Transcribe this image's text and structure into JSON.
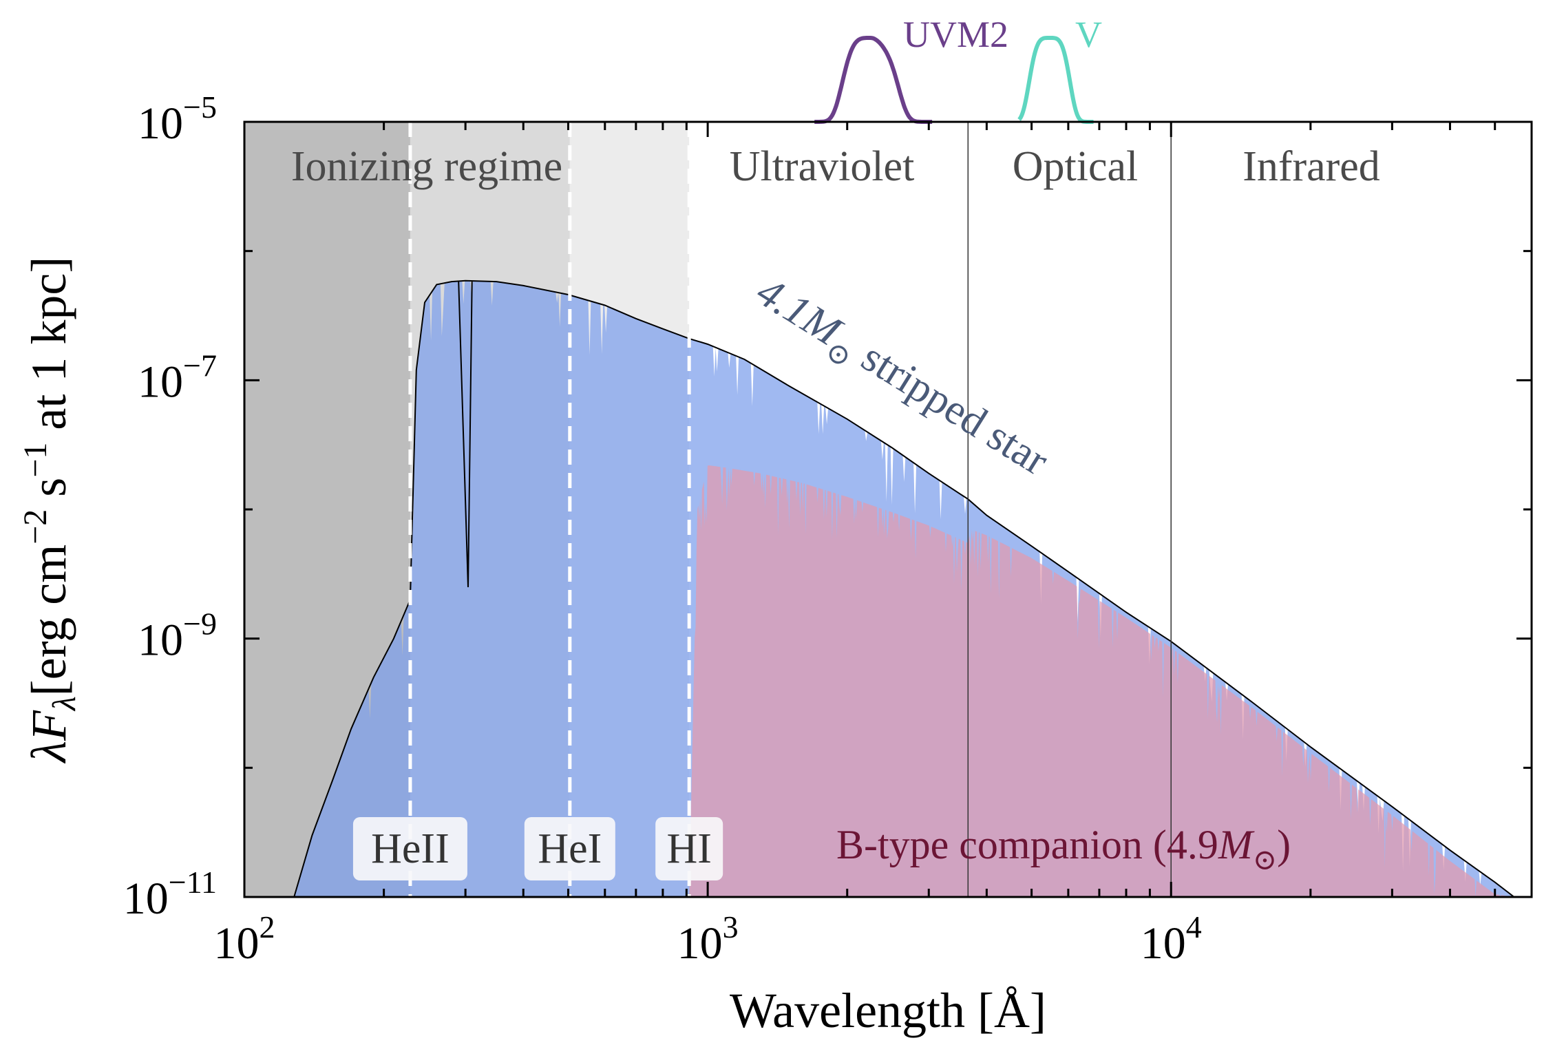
{
  "chart_data": {
    "type": "area",
    "xscale": "log",
    "yscale": "log",
    "xlim": [
      100,
      60000
    ],
    "ylim": [
      1e-11,
      1e-05
    ],
    "xlabel": "Wavelength [Å]",
    "ylabel_parts": {
      "main": "λF",
      "sub": "λ",
      "units": "[erg cm",
      "e1": "−2",
      "s": " s",
      "e2": "−1",
      "tail": " at 1 kpc]"
    },
    "x_ticks": [
      {
        "value": 100,
        "base": "10",
        "exp": "2"
      },
      {
        "value": 1000,
        "base": "10",
        "exp": "3"
      },
      {
        "value": 10000,
        "base": "10",
        "exp": "4"
      }
    ],
    "y_ticks": [
      {
        "value": 1e-05,
        "base": "10",
        "exp": "−5"
      },
      {
        "value": 1e-07,
        "base": "10",
        "exp": "−7"
      },
      {
        "value": 1e-09,
        "base": "10",
        "exp": "−9"
      },
      {
        "value": 1e-11,
        "base": "10",
        "exp": "−11"
      }
    ],
    "regions": [
      {
        "label": "Ionizing regime",
        "x_range": [
          100,
          912
        ],
        "color": "#cccccc"
      },
      {
        "label": "Ultraviolet",
        "x_range": [
          912,
          3646
        ]
      },
      {
        "label": "Optical",
        "x_range": [
          3646,
          10000
        ]
      },
      {
        "label": "Infrared",
        "x_range": [
          10000,
          60000
        ]
      }
    ],
    "ionization_edges": [
      {
        "label": "HeII",
        "wavelength": 228,
        "shade": "#bdbdbd"
      },
      {
        "label": "HeI",
        "wavelength": 504,
        "shade": "#dadada"
      },
      {
        "label": "HI",
        "wavelength": 912,
        "shade": "#ececec"
      }
    ],
    "series": [
      {
        "name": "4.1M⊙ stripped star",
        "label_text": "4.1M",
        "label_tail": " stripped star",
        "color": "#4a6fd6",
        "fill": "#7b9eec",
        "line_color": "#000000",
        "x": [
          128,
          140,
          155,
          170,
          190,
          210,
          228,
          235,
          245,
          260,
          280,
          300,
          350,
          400,
          500,
          600,
          700,
          800,
          912,
          1000,
          1200,
          1500,
          2000,
          2500,
          3000,
          3646,
          4000,
          5000,
          6000,
          8000,
          10000,
          15000,
          20000,
          30000,
          40000,
          50000,
          55000
        ],
        "y": [
          1e-11,
          3e-11,
          8e-11,
          2e-10,
          5e-10,
          1e-09,
          2e-09,
          1.2e-07,
          4e-07,
          5.5e-07,
          5.8e-07,
          5.9e-07,
          5.8e-07,
          5.4e-07,
          4.6e-07,
          3.8e-07,
          3e-07,
          2.5e-07,
          2.1e-07,
          1.9e-07,
          1.45e-07,
          9e-08,
          5e-08,
          3e-08,
          1.9e-08,
          1.2e-08,
          9e-09,
          5.2e-09,
          3.3e-09,
          1.6e-09,
          9.5e-10,
          3.2e-10,
          1.45e-10,
          5e-11,
          2.3e-11,
          1.3e-11,
          1e-11
        ]
      },
      {
        "name": "B-type companion (4.9M⊙)",
        "label_text": "B-type companion (4.9",
        "label_m": "M",
        "label_tail": ")",
        "color": "#d98aa0",
        "fill": "#e29aae",
        "x": [
          912,
          950,
          1000,
          1100,
          1300,
          1600,
          2000,
          2500,
          3000,
          3646,
          3700,
          4000,
          5000,
          6000,
          8000,
          10000,
          15000,
          20000,
          30000,
          40000,
          50000,
          55000
        ],
        "y": [
          1e-11,
          1e-08,
          2.2e-08,
          2.1e-08,
          1.9e-08,
          1.6e-08,
          1.25e-08,
          9.5e-09,
          7.5e-09,
          5.5e-09,
          7e-09,
          6.3e-09,
          4.2e-09,
          2.8e-09,
          1.45e-09,
          8.5e-10,
          2.9e-10,
          1.3e-10,
          4.3e-11,
          1.9e-11,
          1.05e-11,
          1e-11
        ]
      }
    ],
    "filters": [
      {
        "name": "UVM2",
        "color": "#6a3f8a",
        "center": 2246,
        "range": [
          1700,
          3050
        ]
      },
      {
        "name": "V",
        "color": "#5ed6c0",
        "center": 5468,
        "range": [
          4700,
          6800
        ]
      }
    ]
  }
}
